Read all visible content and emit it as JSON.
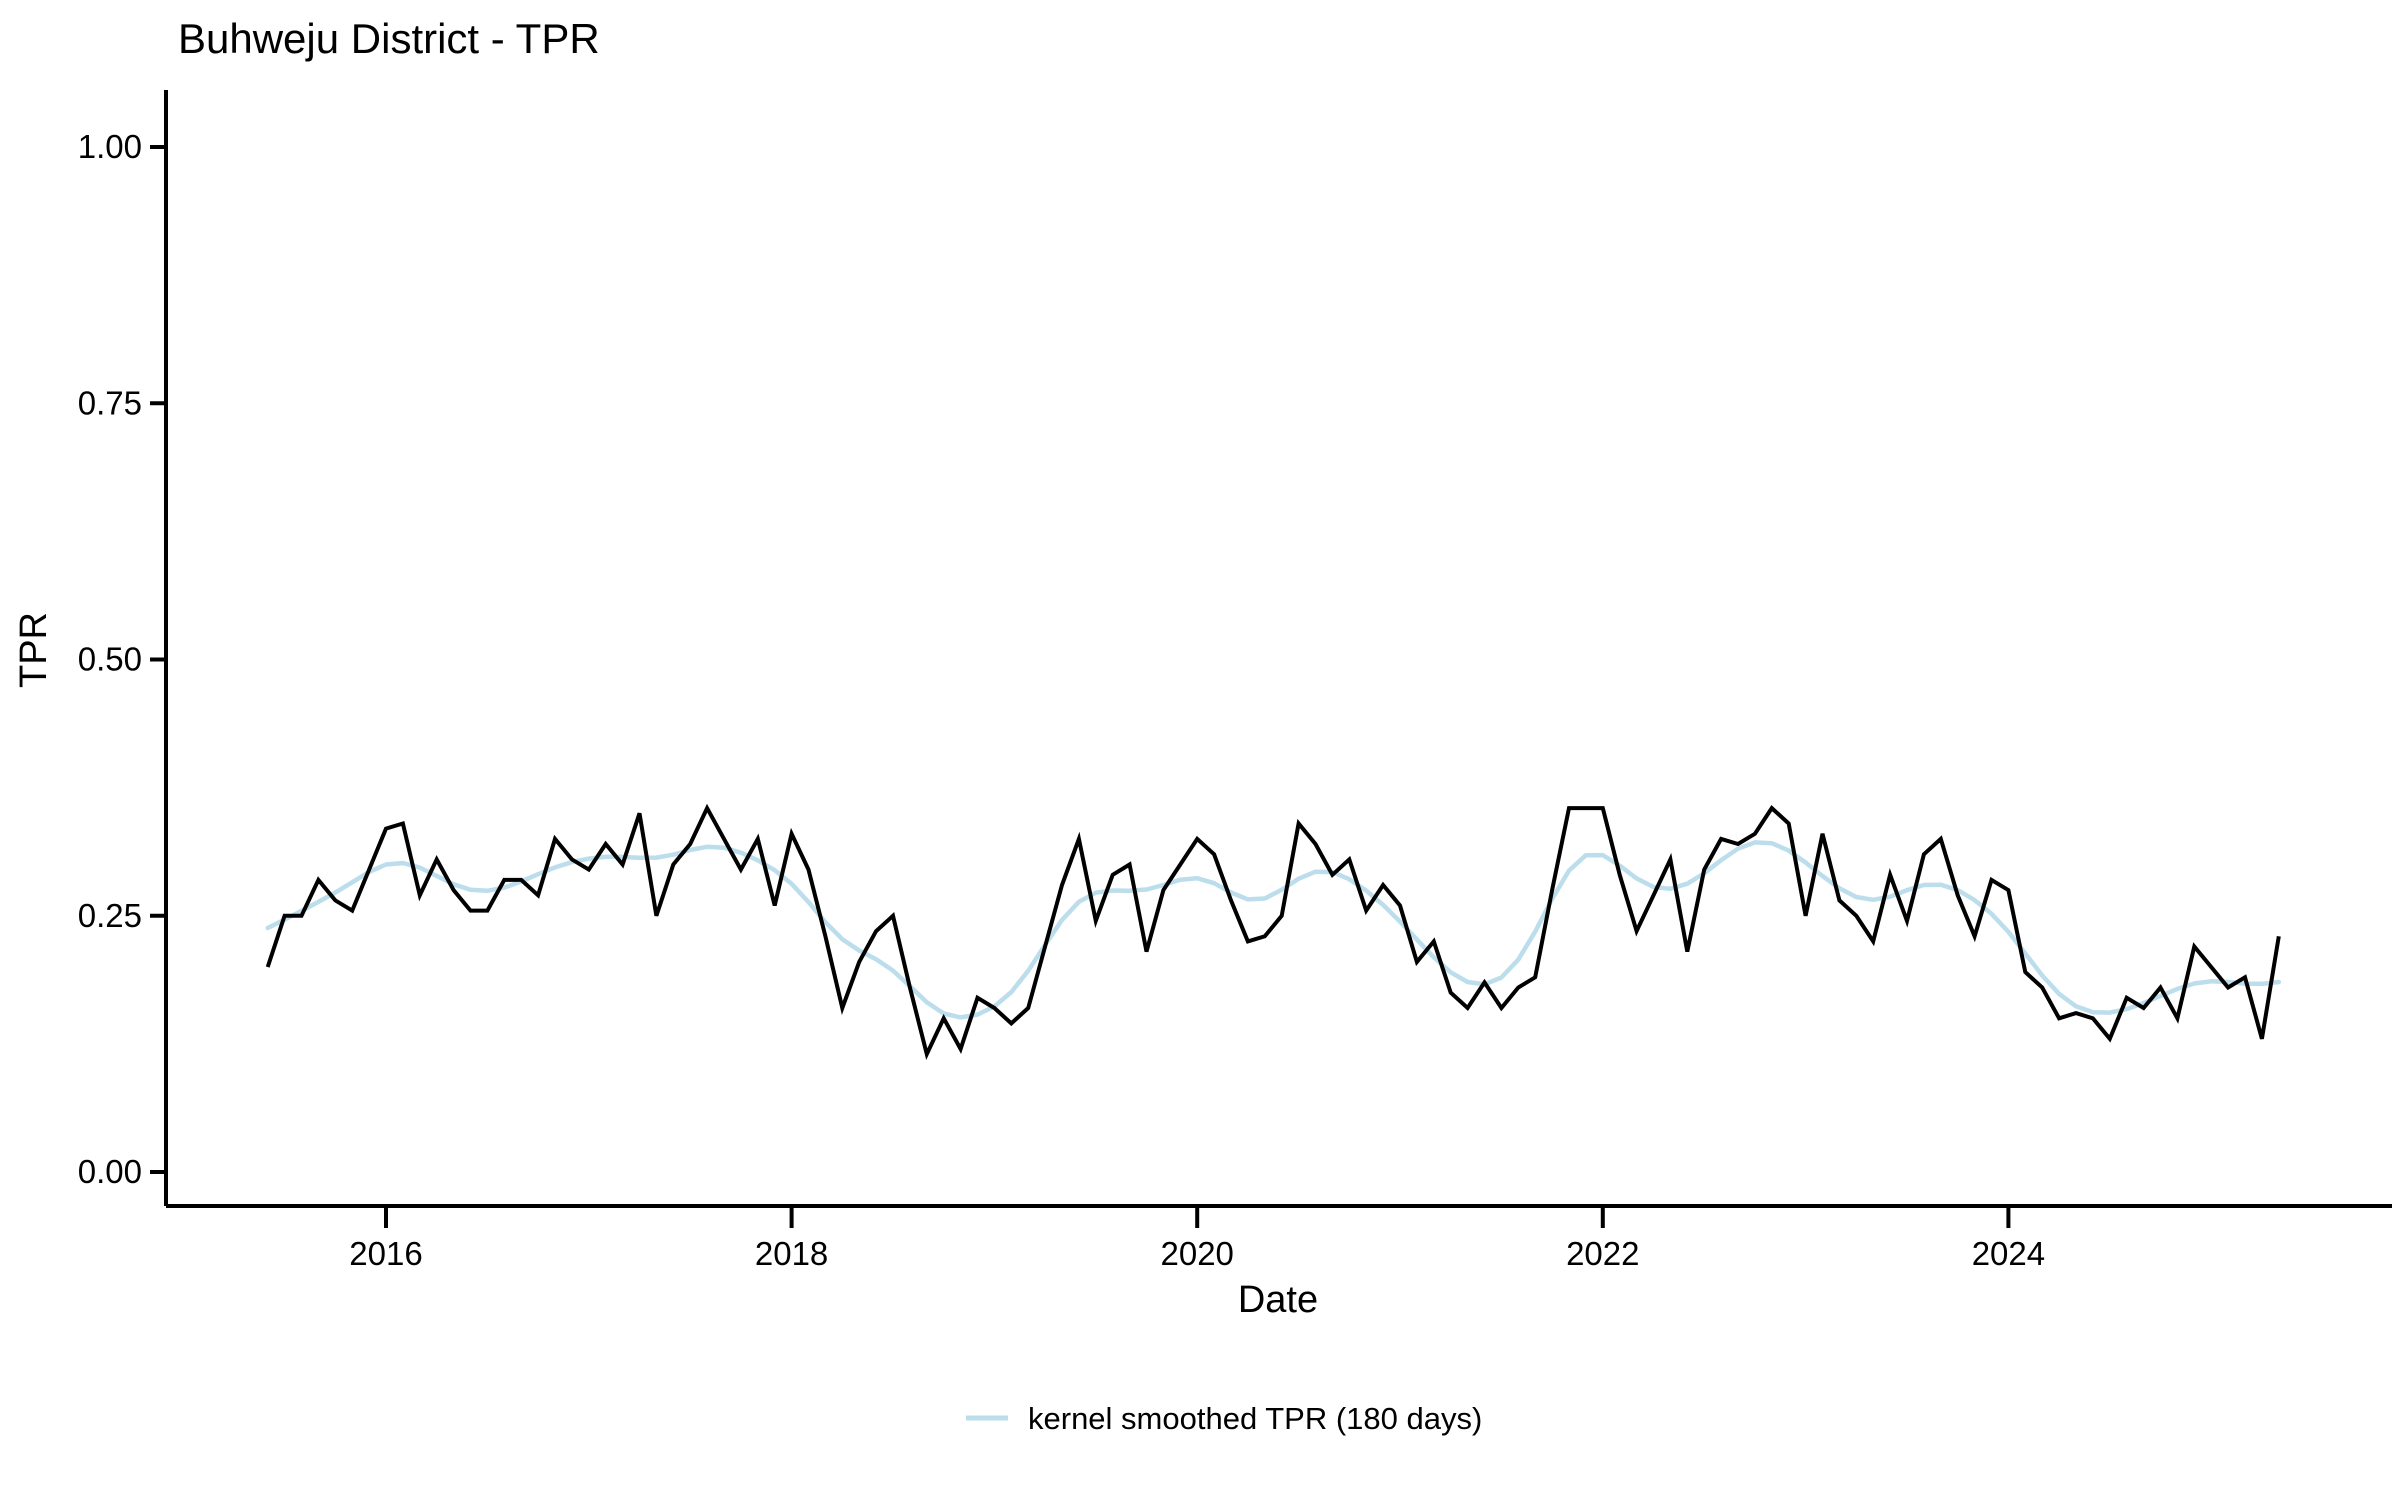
{
  "title": "Buhweju District - TPR",
  "axes": {
    "x_label": "Date",
    "y_label": "TPR",
    "x_tick_years": [
      2016,
      2018,
      2020,
      2022,
      2024
    ],
    "y_tick_labels": [
      "0.00",
      "0.25",
      "0.50",
      "0.75",
      "1.00"
    ],
    "y_tick_values": [
      0.0,
      0.25,
      0.5,
      0.75,
      1.0
    ]
  },
  "legend": {
    "label": "kernel smoothed TPR (180 days)"
  },
  "colors": {
    "raw_line": "#000000",
    "smoothed_line": "#BCDDEB",
    "axis": "#000000",
    "text": "#000000"
  },
  "chart_data": {
    "type": "line",
    "title": "Buhweju District - TPR",
    "xlabel": "Date",
    "ylabel": "TPR",
    "ylim": [
      0.0,
      1.0
    ],
    "x_start": "2015-06",
    "x_end": "2025-05",
    "x_frequency": "monthly",
    "legend_position": "bottom-center",
    "grid": false,
    "series": [
      {
        "name": "TPR",
        "color": "#000000",
        "values": [
          0.2,
          0.25,
          0.25,
          0.285,
          0.265,
          0.255,
          0.295,
          0.335,
          0.34,
          0.27,
          0.305,
          0.275,
          0.255,
          0.255,
          0.285,
          0.285,
          0.27,
          0.325,
          0.305,
          0.295,
          0.32,
          0.3,
          0.35,
          0.25,
          0.3,
          0.32,
          0.355,
          0.325,
          0.295,
          0.325,
          0.26,
          0.33,
          0.295,
          0.23,
          0.16,
          0.205,
          0.235,
          0.25,
          0.18,
          0.115,
          0.15,
          0.12,
          0.17,
          0.16,
          0.145,
          0.16,
          0.22,
          0.28,
          0.325,
          0.245,
          0.29,
          0.3,
          0.215,
          0.275,
          0.3,
          0.325,
          0.31,
          0.265,
          0.225,
          0.23,
          0.25,
          0.34,
          0.32,
          0.29,
          0.305,
          0.255,
          0.28,
          0.26,
          0.205,
          0.225,
          0.175,
          0.16,
          0.185,
          0.16,
          0.18,
          0.19,
          0.275,
          0.355,
          0.355,
          0.355,
          0.29,
          0.235,
          0.27,
          0.305,
          0.215,
          0.295,
          0.325,
          0.32,
          0.33,
          0.355,
          0.34,
          0.25,
          0.33,
          0.265,
          0.25,
          0.225,
          0.29,
          0.245,
          0.31,
          0.325,
          0.27,
          0.23,
          0.285,
          0.275,
          0.195,
          0.18,
          0.15,
          0.155,
          0.15,
          0.13,
          0.17,
          0.16,
          0.18,
          0.15,
          0.22,
          0.2,
          0.18,
          0.19,
          0.13,
          0.23
        ]
      },
      {
        "name": "kernel smoothed TPR (180 days)",
        "color": "#BCDDEB",
        "derived_from": "TPR",
        "smoothing_window_days": 180
      }
    ]
  }
}
